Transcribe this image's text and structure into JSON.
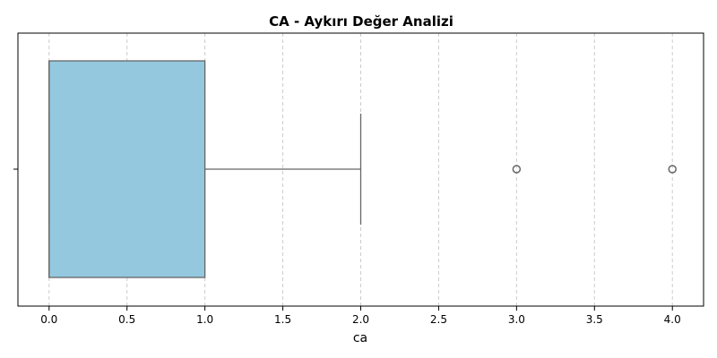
{
  "chart_data": {
    "type": "boxplot",
    "orientation": "horizontal",
    "title": "CA - Aykırı Değer Analizi",
    "xlabel": "ca",
    "ylabel": "",
    "xlim": [
      -0.2,
      4.2
    ],
    "xticks": [
      0.0,
      0.5,
      1.0,
      1.5,
      2.0,
      2.5,
      3.0,
      3.5,
      4.0
    ],
    "xtick_labels": [
      "0.0",
      "0.5",
      "1.0",
      "1.5",
      "2.0",
      "2.5",
      "3.0",
      "3.5",
      "4.0"
    ],
    "grid": {
      "x": true,
      "y": false,
      "style": "dashed"
    },
    "box": {
      "q1": 0.0,
      "median": 0.0,
      "q3": 1.0,
      "whisker_low": 0.0,
      "whisker_high": 2.0
    },
    "outliers": [
      3.0,
      4.0
    ],
    "colors": {
      "box_fill": "#93c8df",
      "box_edge": "#666666",
      "grid": "#cccccc",
      "outlier_edge": "#666666"
    }
  }
}
